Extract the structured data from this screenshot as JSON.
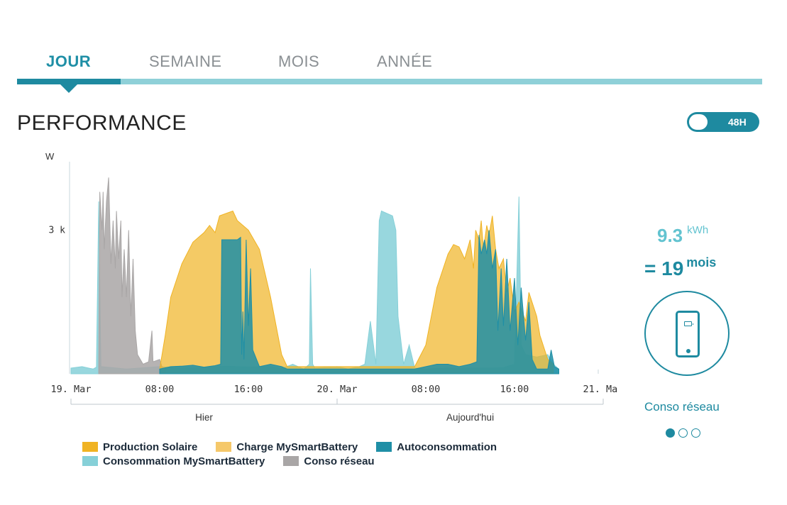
{
  "tabs": [
    {
      "label": "JOUR",
      "active": true
    },
    {
      "label": "SEMAINE",
      "active": false
    },
    {
      "label": "MOIS",
      "active": false
    },
    {
      "label": "ANNÉE",
      "active": false
    }
  ],
  "section_title": "PERFORMANCE",
  "toggle": {
    "label": "48H",
    "state": "on"
  },
  "summary": {
    "kwh_value": "9.3",
    "kwh_unit": "kWh",
    "equiv_value": "= 19",
    "equiv_unit": "mois",
    "icon": "smartphone-icon",
    "caption": "Conso réseau",
    "pager": {
      "count": 3,
      "active_index": 0
    }
  },
  "colors": {
    "accent": "#1e8aa0",
    "light_accent": "#8fd0d8",
    "production_solaire": "#f0b323",
    "charge_battery": "#f5c86a",
    "autoconsommation": "#1f8fa6",
    "consommation_battery": "#86d0d8",
    "conso_reseau": "#a9a6a6"
  },
  "chart_data": {
    "type": "area",
    "ylabel": "W",
    "ytick_labels": [
      "3 k"
    ],
    "ylim": [
      0,
      4400
    ],
    "xlim": [
      0,
      48
    ],
    "xtick_labels": [
      "19. Mar",
      "08:00",
      "16:00",
      "20. Mar",
      "08:00",
      "16:00",
      "21. Mar"
    ],
    "xtick_hours": [
      0,
      8,
      16,
      24,
      32,
      40,
      48
    ],
    "group_labels": [
      "Hier",
      "Aujourd'hui"
    ],
    "group_bounds": [
      0,
      24,
      48
    ],
    "legend_position": "bottom",
    "legend": [
      {
        "name": "Production Solaire",
        "color_key": "production_solaire"
      },
      {
        "name": "Charge MySmartBattery",
        "color_key": "charge_battery"
      },
      {
        "name": "Autoconsommation",
        "color_key": "autoconsommation"
      },
      {
        "name": "Consommation MySmartBattery",
        "color_key": "consommation_battery"
      },
      {
        "name": "Conso réseau",
        "color_key": "conso_reseau"
      }
    ],
    "series": [
      {
        "name": "Consommation MySmartBattery",
        "color_key": "consommation_battery",
        "points": [
          [
            0,
            120
          ],
          [
            1,
            150
          ],
          [
            2,
            100
          ],
          [
            2.3,
            140
          ],
          [
            2.5,
            3600
          ],
          [
            2.7,
            150
          ],
          [
            5,
            100
          ],
          [
            8,
            150
          ],
          [
            10,
            120
          ],
          [
            12,
            130
          ],
          [
            14,
            160
          ],
          [
            16,
            140
          ],
          [
            18,
            150
          ],
          [
            19,
            110
          ],
          [
            20,
            200
          ],
          [
            21,
            100
          ],
          [
            21.5,
            200
          ],
          [
            21.6,
            2200
          ],
          [
            21.8,
            200
          ],
          [
            22,
            120
          ],
          [
            24,
            150
          ],
          [
            25,
            100
          ],
          [
            26,
            150
          ],
          [
            26.5,
            200
          ],
          [
            27,
            1100
          ],
          [
            27.5,
            200
          ],
          [
            27.8,
            3200
          ],
          [
            28,
            3400
          ],
          [
            29,
            3300
          ],
          [
            29.3,
            3000
          ],
          [
            29.5,
            1200
          ],
          [
            30,
            200
          ],
          [
            30.5,
            600
          ],
          [
            31,
            120
          ],
          [
            32,
            100
          ],
          [
            34,
            120
          ],
          [
            36,
            120
          ],
          [
            38,
            120
          ],
          [
            39,
            130
          ],
          [
            40,
            200
          ],
          [
            40.4,
            3700
          ],
          [
            40.6,
            600
          ],
          [
            41,
            400
          ],
          [
            42,
            350
          ],
          [
            43,
            400
          ],
          [
            43.5,
            200
          ],
          [
            44,
            100
          ]
        ]
      },
      {
        "name": "Conso réseau",
        "color_key": "conso_reseau",
        "points": [
          [
            2.5,
            100
          ],
          [
            2.6,
            3800
          ],
          [
            2.8,
            3000
          ],
          [
            2.9,
            3800
          ],
          [
            3,
            2600
          ],
          [
            3.2,
            3600
          ],
          [
            3.4,
            4100
          ],
          [
            3.6,
            2300
          ],
          [
            3.8,
            3200
          ],
          [
            4,
            2200
          ],
          [
            4.1,
            3400
          ],
          [
            4.3,
            2400
          ],
          [
            4.5,
            3200
          ],
          [
            4.6,
            1600
          ],
          [
            4.8,
            2600
          ],
          [
            5,
            1600
          ],
          [
            5.2,
            3000
          ],
          [
            5.4,
            1200
          ],
          [
            5.6,
            2400
          ],
          [
            5.8,
            900
          ],
          [
            6,
            400
          ],
          [
            6.5,
            200
          ],
          [
            7,
            250
          ],
          [
            7.3,
            900
          ],
          [
            7.4,
            250
          ],
          [
            8,
            300
          ],
          [
            8.2,
            150
          ],
          [
            8.5,
            100
          ]
        ]
      },
      {
        "name": "Production Solaire",
        "color_key": "production_solaire",
        "points": [
          [
            8,
            100
          ],
          [
            8.5,
            800
          ],
          [
            9,
            1600
          ],
          [
            10,
            2300
          ],
          [
            11,
            2750
          ],
          [
            12,
            2950
          ],
          [
            12.5,
            3100
          ],
          [
            13,
            2950
          ],
          [
            13.4,
            3300
          ],
          [
            14,
            3350
          ],
          [
            14.6,
            3400
          ],
          [
            15,
            3200
          ],
          [
            16,
            3000
          ],
          [
            17,
            2600
          ],
          [
            18,
            1600
          ],
          [
            19,
            400
          ],
          [
            19.5,
            150
          ],
          [
            31,
            150
          ],
          [
            32,
            600
          ],
          [
            33,
            1800
          ],
          [
            34,
            2500
          ],
          [
            34.5,
            2700
          ],
          [
            35,
            2650
          ],
          [
            35.5,
            2400
          ],
          [
            36,
            2800
          ],
          [
            36.3,
            2200
          ],
          [
            36.5,
            3000
          ],
          [
            36.8,
            2800
          ],
          [
            37,
            3200
          ],
          [
            37.2,
            2600
          ],
          [
            37.5,
            3100
          ],
          [
            37.7,
            2900
          ],
          [
            38,
            3300
          ],
          [
            38.3,
            2600
          ],
          [
            38.6,
            2200
          ],
          [
            39,
            2400
          ],
          [
            39.3,
            1700
          ],
          [
            39.6,
            2000
          ],
          [
            40,
            1300
          ],
          [
            40.4,
            1500
          ],
          [
            41,
            1100
          ],
          [
            41.3,
            1700
          ],
          [
            42,
            1200
          ],
          [
            42.3,
            800
          ],
          [
            43,
            300
          ],
          [
            43.5,
            200
          ]
        ]
      },
      {
        "name": "Autoconsommation",
        "color_key": "autoconsommation",
        "points": [
          [
            8,
            100
          ],
          [
            9,
            150
          ],
          [
            10,
            160
          ],
          [
            11,
            180
          ],
          [
            12,
            140
          ],
          [
            13,
            170
          ],
          [
            13.5,
            200
          ],
          [
            13.6,
            2800
          ],
          [
            14,
            2800
          ],
          [
            15,
            2800
          ],
          [
            15.3,
            2850
          ],
          [
            15.4,
            400
          ],
          [
            15.5,
            1300
          ],
          [
            15.6,
            300
          ],
          [
            15.8,
            2800
          ],
          [
            16,
            1000
          ],
          [
            16.2,
            2200
          ],
          [
            16.4,
            500
          ],
          [
            17,
            150
          ],
          [
            18,
            200
          ],
          [
            19,
            150
          ],
          [
            19.5,
            100
          ],
          [
            31,
            100
          ],
          [
            32,
            150
          ],
          [
            33,
            200
          ],
          [
            34,
            200
          ],
          [
            35,
            150
          ],
          [
            36,
            200
          ],
          [
            36.6,
            250
          ],
          [
            36.8,
            2900
          ],
          [
            37,
            2500
          ],
          [
            37.3,
            2800
          ],
          [
            37.5,
            2500
          ],
          [
            37.7,
            3000
          ],
          [
            38,
            2200
          ],
          [
            38.3,
            2600
          ],
          [
            38.5,
            900
          ],
          [
            38.8,
            2200
          ],
          [
            39,
            1000
          ],
          [
            39.3,
            2400
          ],
          [
            39.6,
            900
          ],
          [
            40,
            2000
          ],
          [
            40.3,
            600
          ],
          [
            40.6,
            1800
          ],
          [
            41,
            700
          ],
          [
            41.3,
            1500
          ],
          [
            41.6,
            300
          ],
          [
            42,
            100
          ],
          [
            43,
            100
          ],
          [
            43.3,
            500
          ],
          [
            43.6,
            150
          ],
          [
            44,
            100
          ]
        ]
      }
    ]
  }
}
